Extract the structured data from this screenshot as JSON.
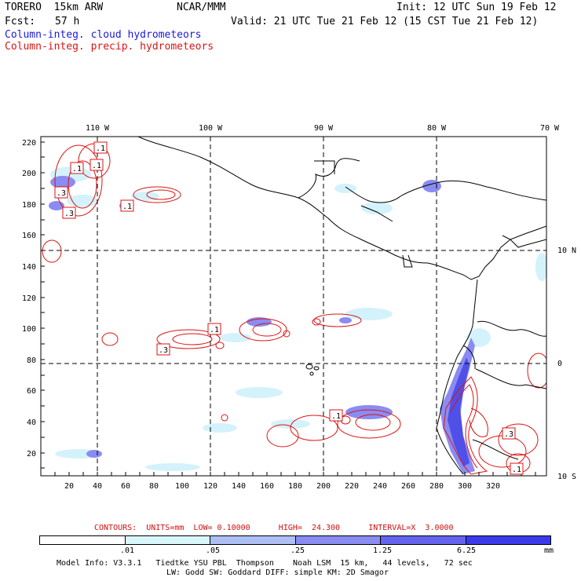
{
  "header": {
    "model": "TORERO  15km ARW",
    "center": "NCAR/MMM",
    "init": "Init: 12 UTC Sun 19 Feb 12",
    "fcst_label": "Fcst:",
    "fcst_value": "57 h",
    "valid": "Valid: 21 UTC Tue 21 Feb 12 (15 CST Tue 21 Feb 12)",
    "field_cloud": "Column-integ. cloud hydrometeors",
    "field_precip": "Column-integ. precip. hydrometeors"
  },
  "map": {
    "lon_labels": [
      "110 W",
      "100 W",
      "90 W",
      "80 W",
      "70 W"
    ],
    "lat_labels": [
      "10 N",
      "0",
      "10 S"
    ],
    "y_ticks": [
      "220",
      "200",
      "180",
      "160",
      "140",
      "120",
      "100",
      "80",
      "60",
      "40",
      "20"
    ],
    "x_ticks": [
      "20",
      "40",
      "60",
      "80",
      "100",
      "120",
      "140",
      "160",
      "180",
      "200",
      "220",
      "240",
      "260",
      "280",
      "300",
      "320"
    ],
    "contour_labels": [
      ".1",
      ".1",
      ".1",
      ".3",
      ".3",
      ".1",
      ".1",
      ".3",
      ".1",
      ".1",
      ".3",
      ".3",
      ".1",
      ".1",
      ".1"
    ]
  },
  "contours_info": {
    "text": "CONTOURS:  UNITS=mm  LOW= 0.10000      HIGH=  24.300      INTERVAL=X  3.0000"
  },
  "legend": {
    "ticks": [
      ".01",
      ".05",
      ".25",
      "1.25",
      "6.25"
    ],
    "unit": "mm",
    "colors": [
      "#ffffff",
      "#d9f6fb",
      "#aebff5",
      "#8a8cf2",
      "#6464ef",
      "#3a3aec"
    ]
  },
  "footer": {
    "line1": "Model Info: V3.3.1   Tiedtke YSU PBL  Thompson    Noah LSM  15 km,   44 levels,   72 sec",
    "line2": "LW: Godd SW: Goddard DIFF: simple KM: 2D Smagor"
  }
}
